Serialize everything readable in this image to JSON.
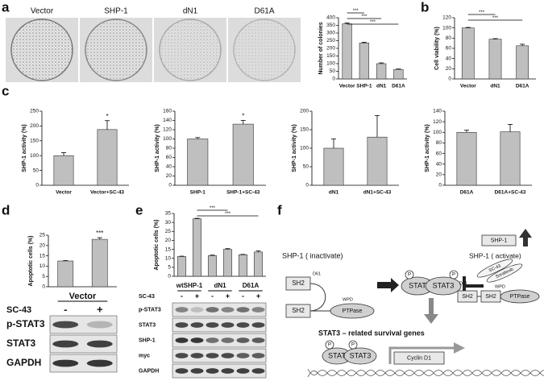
{
  "panel_letters": [
    "a",
    "b",
    "c",
    "d",
    "e",
    "f"
  ],
  "plates": [
    "Vector",
    "SHP-1",
    "dN1",
    "D61A"
  ],
  "chart_data": [
    {
      "type": "bar",
      "ylabel": "Number of colonies",
      "categories": [
        "Vector",
        "SHP-1",
        "dN1",
        "D61A"
      ],
      "values": [
        360,
        235,
        100,
        62
      ],
      "errors": [
        6,
        5,
        5,
        3
      ],
      "ylim": [
        0,
        400
      ],
      "yticks": [
        0,
        50,
        100,
        150,
        200,
        250,
        300,
        350,
        400
      ],
      "color": "#bfbfbf",
      "annotations": [
        "***",
        "***",
        "***"
      ]
    },
    {
      "type": "bar",
      "ylabel": "Cell viability (%)",
      "categories": [
        "Vector",
        "dN1",
        "D61A"
      ],
      "values": [
        100,
        78,
        65
      ],
      "errors": [
        1,
        1,
        3
      ],
      "ylim": [
        0,
        120
      ],
      "yticks": [
        0,
        20,
        40,
        60,
        80,
        100,
        120
      ],
      "color": "#bfbfbf",
      "annotations": [
        "***",
        "***"
      ]
    },
    {
      "type": "bar",
      "ylabel": "SHP-1 activity (%)",
      "categories": [
        "Vector",
        "Vector+SC-43"
      ],
      "values": [
        100,
        188
      ],
      "errors": [
        10,
        30
      ],
      "ylim": [
        0,
        250
      ],
      "yticks": [
        0,
        50,
        100,
        150,
        200,
        250
      ],
      "color": "#bfbfbf",
      "annotations": [
        "*"
      ]
    },
    {
      "type": "bar",
      "ylabel": "SHP-1 activity (%)",
      "categories": [
        "SHP-1",
        "SHP-1+SC-43"
      ],
      "values": [
        100,
        132
      ],
      "errors": [
        3,
        8
      ],
      "ylim": [
        0,
        160
      ],
      "yticks": [
        0,
        20,
        40,
        60,
        80,
        100,
        120,
        140,
        160
      ],
      "color": "#bfbfbf",
      "annotations": [
        "*"
      ]
    },
    {
      "type": "bar",
      "ylabel": "SHP-1 activity (%)",
      "categories": [
        "dN1",
        "dN1+SC-43"
      ],
      "values": [
        100,
        130
      ],
      "errors": [
        25,
        58
      ],
      "ylim": [
        0,
        200
      ],
      "yticks": [
        0,
        50,
        100,
        150,
        200
      ],
      "color": "#bfbfbf",
      "annotations": []
    },
    {
      "type": "bar",
      "ylabel": "SHP-1 activity (%)",
      "categories": [
        "D61A",
        "D61A+SC-43"
      ],
      "values": [
        100,
        101
      ],
      "errors": [
        4,
        14
      ],
      "ylim": [
        0,
        140
      ],
      "yticks": [
        0,
        20,
        40,
        60,
        80,
        100,
        120,
        140
      ],
      "color": "#bfbfbf",
      "annotations": []
    },
    {
      "type": "bar",
      "ylabel": "Apoptotic cells (%)",
      "categories": [
        "-",
        "+"
      ],
      "group_labels": [
        "Vector"
      ],
      "row_label": "SC-43",
      "values": [
        12.5,
        23
      ],
      "errors": [
        0.2,
        0.8
      ],
      "ylim": [
        0,
        25
      ],
      "yticks": [
        0,
        5,
        10,
        15,
        20,
        25
      ],
      "color": "#bfbfbf",
      "annotations": [
        "***"
      ]
    },
    {
      "type": "bar",
      "ylabel": "Apoptotic cells (%)",
      "categories": [
        "-",
        "+",
        "-",
        "+",
        "-",
        "+"
      ],
      "group_labels": [
        "wtSHP-1",
        "dN1",
        "D61A"
      ],
      "row_label": "SC-43",
      "values": [
        11,
        32,
        11.5,
        15,
        12,
        13.5
      ],
      "errors": [
        0.2,
        0.3,
        0.3,
        0.4,
        0.2,
        0.6
      ],
      "ylim": [
        0,
        35
      ],
      "yticks": [
        0,
        5,
        10,
        15,
        20,
        25,
        30,
        35
      ],
      "color": "#bfbfbf",
      "annotations": [
        "***",
        "***"
      ]
    }
  ],
  "blots": {
    "d": [
      "p-STAT3",
      "STAT3",
      "GAPDH"
    ],
    "e": [
      "p-STAT3",
      "STAT3",
      "SHP-1",
      "myc",
      "GAPDH"
    ]
  },
  "diagram": {
    "inactive_title": "SHP-1 ( inactivate)",
    "active_title": "SHP-1 ( activate)",
    "shp1_box": "SHP-1",
    "drugs": [
      "SC-43",
      "Sorafenib"
    ],
    "sh2": "SH2",
    "ptpase": "PTPase",
    "d61": "D61",
    "wpd": "WPD",
    "phospho": "P",
    "stat": [
      "STAT",
      "STAT3"
    ],
    "genes_title": "STAT3 – related survival genes",
    "gene": "Cyclin D1"
  }
}
